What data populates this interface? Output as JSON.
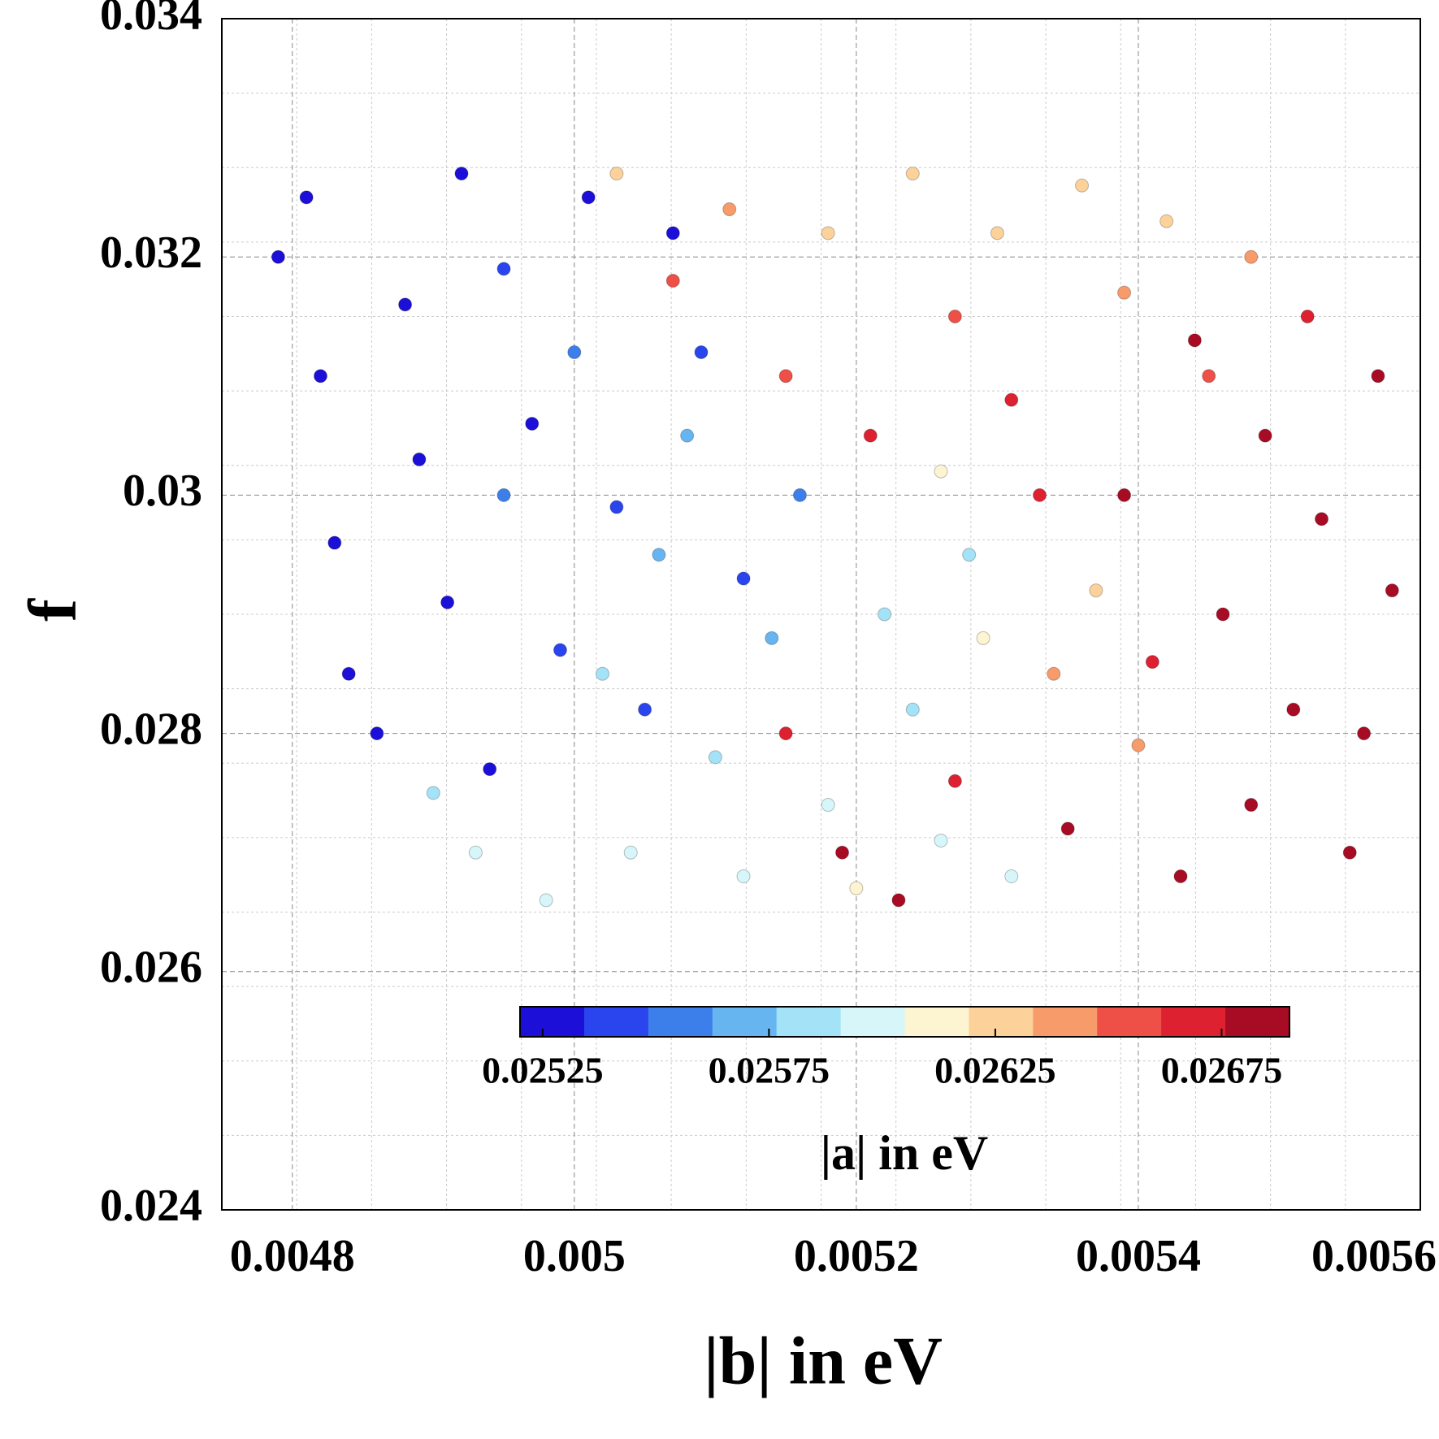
{
  "chart_data": {
    "type": "scatter",
    "x_label": "|b| in eV",
    "y_label": "f",
    "xlim": [
      0.00475,
      0.0056
    ],
    "xticks": [
      0.0048,
      0.005,
      0.0052,
      0.0054,
      0.0056
    ],
    "ylim": [
      0.024,
      0.034
    ],
    "yticks": [
      0.024,
      0.026,
      0.028,
      0.03,
      0.032,
      0.034
    ],
    "grid": true,
    "x": [
      0.00479,
      0.00481,
      0.00482,
      0.00483,
      0.00484,
      0.00486,
      0.00488,
      0.00489,
      0.00491,
      0.00492,
      0.00494,
      0.00495,
      0.00497,
      0.00499,
      0.00501,
      0.00503,
      0.00505,
      0.00507,
      0.00509,
      0.00512,
      0.0049,
      0.00493,
      0.00495,
      0.00498,
      0.005,
      0.00502,
      0.00504,
      0.00506,
      0.00508,
      0.0051,
      0.00512,
      0.00514,
      0.00516,
      0.00518,
      0.0052,
      0.00522,
      0.00524,
      0.00526,
      0.00528,
      0.00531,
      0.00503,
      0.00507,
      0.00511,
      0.00515,
      0.00518,
      0.00521,
      0.00524,
      0.00527,
      0.0053,
      0.00533,
      0.00536,
      0.00539,
      0.00542,
      0.00545,
      0.00548,
      0.00537,
      0.00534,
      0.0054,
      0.00529,
      0.00526,
      0.00515,
      0.00519,
      0.00523,
      0.00527,
      0.00531,
      0.00535,
      0.00539,
      0.00543,
      0.00546,
      0.00549,
      0.00551,
      0.00553,
      0.00555,
      0.00557,
      0.00558,
      0.00552,
      0.00548,
      0.00544,
      0.00541,
      0.00556
    ],
    "y": [
      0.032,
      0.0325,
      0.031,
      0.0296,
      0.0285,
      0.028,
      0.0316,
      0.0303,
      0.0291,
      0.0327,
      0.0277,
      0.0319,
      0.0306,
      0.0287,
      0.0325,
      0.0299,
      0.0282,
      0.0322,
      0.0312,
      0.0293,
      0.0275,
      0.027,
      0.03,
      0.0266,
      0.0312,
      0.0285,
      0.027,
      0.0295,
      0.0305,
      0.0278,
      0.0268,
      0.0288,
      0.03,
      0.0274,
      0.0267,
      0.029,
      0.0282,
      0.0271,
      0.0295,
      0.0268,
      0.0327,
      0.0318,
      0.0324,
      0.031,
      0.0322,
      0.0305,
      0.0327,
      0.0315,
      0.0322,
      0.03,
      0.0326,
      0.0317,
      0.0323,
      0.031,
      0.032,
      0.0292,
      0.0285,
      0.0279,
      0.0288,
      0.0302,
      0.028,
      0.027,
      0.0266,
      0.0276,
      0.0308,
      0.0272,
      0.03,
      0.0268,
      0.029,
      0.0305,
      0.0282,
      0.0298,
      0.027,
      0.031,
      0.0292,
      0.0315,
      0.0274,
      0.0313,
      0.0286,
      0.028
    ],
    "c": [
      0.02528,
      0.0253,
      0.02527,
      0.02529,
      0.02531,
      0.02526,
      0.02532,
      0.02528,
      0.02534,
      0.0253,
      0.02533,
      0.02536,
      0.02529,
      0.02535,
      0.02531,
      0.02538,
      0.0254,
      0.02534,
      0.02537,
      0.02539,
      0.0259,
      0.02595,
      0.0256,
      0.026,
      0.02555,
      0.0258,
      0.02598,
      0.0257,
      0.02565,
      0.02585,
      0.02602,
      0.02575,
      0.02562,
      0.02592,
      0.02605,
      0.02582,
      0.02588,
      0.02596,
      0.02578,
      0.026,
      0.0263,
      0.0265,
      0.0264,
      0.0266,
      0.0262,
      0.0267,
      0.02625,
      0.02655,
      0.02632,
      0.02665,
      0.02628,
      0.02642,
      0.0263,
      0.0265,
      0.02638,
      0.02622,
      0.02645,
      0.02635,
      0.02612,
      0.02618,
      0.02675,
      0.02685,
      0.0268,
      0.0267,
      0.02672,
      0.02682,
      0.02678,
      0.02686,
      0.02676,
      0.02684,
      0.02679,
      0.02688,
      0.02683,
      0.02687,
      0.02681,
      0.02673,
      0.02685,
      0.02677,
      0.02668,
      0.02686
    ],
    "colorbar": {
      "label": "|a| in eV",
      "lim": [
        0.0252,
        0.0269
      ],
      "ticks": [
        0.02525,
        0.02575,
        0.02625,
        0.02675
      ],
      "colors": [
        "#1c0fd8",
        "#2a45ee",
        "#3d7fea",
        "#66b5f0",
        "#a4e2f7",
        "#d6f6fa",
        "#fdf4d2",
        "#fcd29a",
        "#f79b6b",
        "#ee4f47",
        "#dd2130",
        "#a80b24"
      ]
    }
  }
}
